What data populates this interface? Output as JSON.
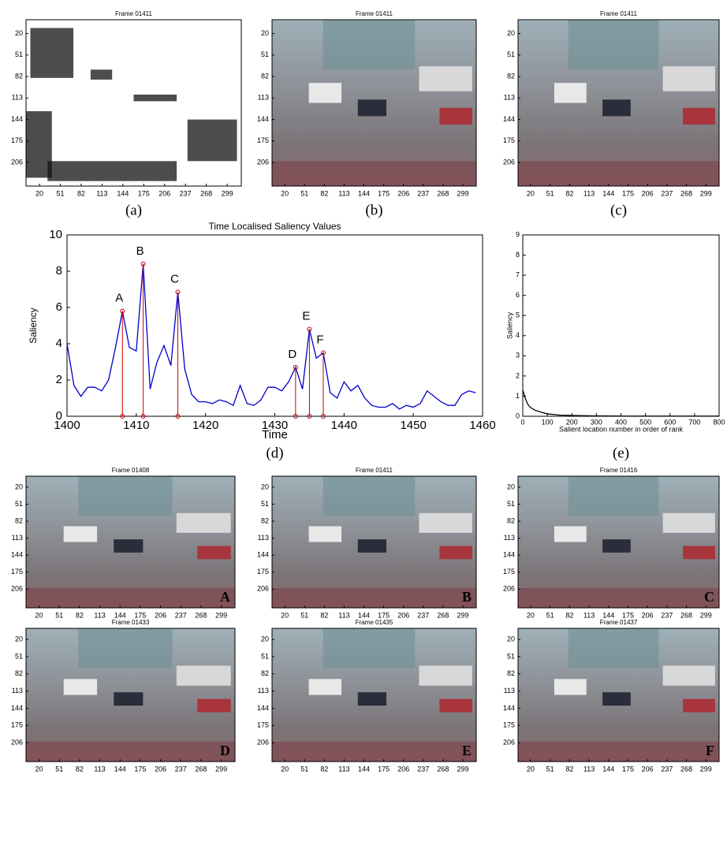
{
  "chart_data": [
    {
      "type": "image",
      "title": "Frame 01411",
      "caption": "(a)",
      "xlim": [
        0,
        320
      ],
      "ylim": [
        0,
        240
      ],
      "xticks": [
        20,
        51,
        82,
        113,
        144,
        175,
        206,
        237,
        268,
        299
      ],
      "yticks": [
        20,
        51,
        82,
        113,
        144,
        175,
        206
      ]
    },
    {
      "type": "image",
      "title": "Frame 01411",
      "caption": "(b)",
      "xlim": [
        0,
        320
      ],
      "ylim": [
        0,
        240
      ],
      "xticks": [
        20,
        51,
        82,
        113,
        144,
        175,
        206,
        237,
        268,
        299
      ],
      "yticks": [
        20,
        51,
        82,
        113,
        144,
        175,
        206
      ]
    },
    {
      "type": "image",
      "title": "Frame 01411",
      "caption": "(c)",
      "xlim": [
        0,
        320
      ],
      "ylim": [
        0,
        240
      ],
      "xticks": [
        20,
        51,
        82,
        113,
        144,
        175,
        206,
        237,
        268,
        299
      ],
      "yticks": [
        20,
        51,
        82,
        113,
        144,
        175,
        206
      ]
    },
    {
      "type": "line",
      "title": "Time Localised Saliency Values",
      "caption": "(d)",
      "xlabel": "Time",
      "ylabel": "Saliency",
      "xlim": [
        1400,
        1460
      ],
      "ylim": [
        0,
        10
      ],
      "xticks": [
        1400,
        1410,
        1420,
        1430,
        1440,
        1450,
        1460
      ],
      "yticks": [
        0,
        2,
        4,
        6,
        8,
        10
      ],
      "x": [
        1400,
        1401,
        1402,
        1403,
        1404,
        1405,
        1406,
        1407,
        1408,
        1409,
        1410,
        1411,
        1412,
        1413,
        1414,
        1415,
        1416,
        1417,
        1418,
        1419,
        1420,
        1421,
        1422,
        1423,
        1424,
        1425,
        1426,
        1427,
        1428,
        1429,
        1430,
        1431,
        1432,
        1433,
        1434,
        1435,
        1436,
        1437,
        1438,
        1439,
        1440,
        1441,
        1442,
        1443,
        1444,
        1445,
        1446,
        1447,
        1448,
        1449,
        1450,
        1451,
        1452,
        1453,
        1454,
        1455,
        1456,
        1457,
        1458,
        1459
      ],
      "series": [
        {
          "color": "#0000cc",
          "values": [
            4.0,
            1.7,
            1.1,
            1.6,
            1.6,
            1.4,
            2.0,
            3.8,
            5.8,
            3.8,
            3.6,
            8.4,
            1.5,
            3.0,
            3.9,
            2.8,
            6.85,
            2.6,
            1.2,
            0.8,
            0.8,
            0.7,
            0.9,
            0.8,
            0.6,
            1.7,
            0.7,
            0.6,
            0.9,
            1.6,
            1.6,
            1.4,
            1.9,
            2.7,
            1.5,
            4.8,
            3.2,
            3.5,
            1.3,
            1.0,
            1.9,
            1.4,
            1.7,
            1.0,
            0.6,
            0.5,
            0.5,
            0.7,
            0.4,
            0.6,
            0.5,
            0.7,
            1.4,
            1.1,
            0.8,
            0.6,
            0.6,
            1.2,
            1.4,
            1.3
          ]
        }
      ],
      "peaks": {
        "color": "#cc0000",
        "x": [
          1408,
          1411,
          1416,
          1433,
          1435,
          1437
        ],
        "values": [
          5.8,
          8.4,
          6.85,
          2.7,
          4.8,
          3.5
        ],
        "labels": [
          "A",
          "B",
          "C",
          "D",
          "E",
          "F"
        ]
      }
    },
    {
      "type": "line",
      "caption": "(e)",
      "xlabel": "Salient location number in order of rank",
      "ylabel": "Saliency",
      "xlim": [
        0,
        800
      ],
      "ylim": [
        0,
        9
      ],
      "xticks": [
        0,
        100,
        200,
        300,
        400,
        500,
        600,
        700,
        800
      ],
      "yticks": [
        0,
        1,
        2,
        3,
        4,
        5,
        6,
        7,
        8,
        9
      ],
      "x": [
        0,
        10,
        20,
        30,
        50,
        75,
        100,
        150,
        200,
        300,
        400,
        500,
        600,
        700,
        800
      ],
      "series": [
        {
          "color": "#000000",
          "values": [
            1.3,
            0.9,
            0.6,
            0.45,
            0.3,
            0.2,
            0.12,
            0.06,
            0.04,
            0.02,
            0.01,
            0.01,
            0.01,
            0.01,
            0.01
          ]
        }
      ]
    },
    {
      "type": "image",
      "title": "Frame 01408",
      "label": "A",
      "xlim": [
        0,
        320
      ],
      "ylim": [
        0,
        240
      ],
      "xticks": [
        20,
        51,
        82,
        113,
        144,
        175,
        206,
        237,
        268,
        299
      ],
      "yticks": [
        20,
        51,
        82,
        113,
        144,
        175,
        206
      ]
    },
    {
      "type": "image",
      "title": "Frame 01411",
      "label": "B",
      "xlim": [
        0,
        320
      ],
      "ylim": [
        0,
        240
      ],
      "xticks": [
        20,
        51,
        82,
        113,
        144,
        175,
        206,
        237,
        268,
        299
      ],
      "yticks": [
        20,
        51,
        82,
        113,
        144,
        175,
        206
      ]
    },
    {
      "type": "image",
      "title": "Frame 01416",
      "label": "C",
      "xlim": [
        0,
        320
      ],
      "ylim": [
        0,
        240
      ],
      "xticks": [
        20,
        51,
        82,
        113,
        144,
        175,
        206,
        237,
        268,
        299
      ],
      "yticks": [
        20,
        51,
        82,
        113,
        144,
        175,
        206
      ]
    },
    {
      "type": "image",
      "title": "Frame 01433",
      "label": "D",
      "xlim": [
        0,
        320
      ],
      "ylim": [
        0,
        240
      ],
      "xticks": [
        20,
        51,
        82,
        113,
        144,
        175,
        206,
        237,
        268,
        299
      ],
      "yticks": [
        20,
        51,
        82,
        113,
        144,
        175,
        206
      ]
    },
    {
      "type": "image",
      "title": "Frame 01435",
      "label": "E",
      "xlim": [
        0,
        320
      ],
      "ylim": [
        0,
        240
      ],
      "xticks": [
        20,
        51,
        82,
        113,
        144,
        175,
        206,
        237,
        268,
        299
      ],
      "yticks": [
        20,
        51,
        82,
        113,
        144,
        175,
        206
      ]
    },
    {
      "type": "image",
      "title": "Frame 01437",
      "label": "F",
      "xlim": [
        0,
        320
      ],
      "ylim": [
        0,
        240
      ],
      "xticks": [
        20,
        51,
        82,
        113,
        144,
        175,
        206,
        237,
        268,
        299
      ],
      "yticks": [
        20,
        51,
        82,
        113,
        144,
        175,
        206
      ]
    }
  ]
}
